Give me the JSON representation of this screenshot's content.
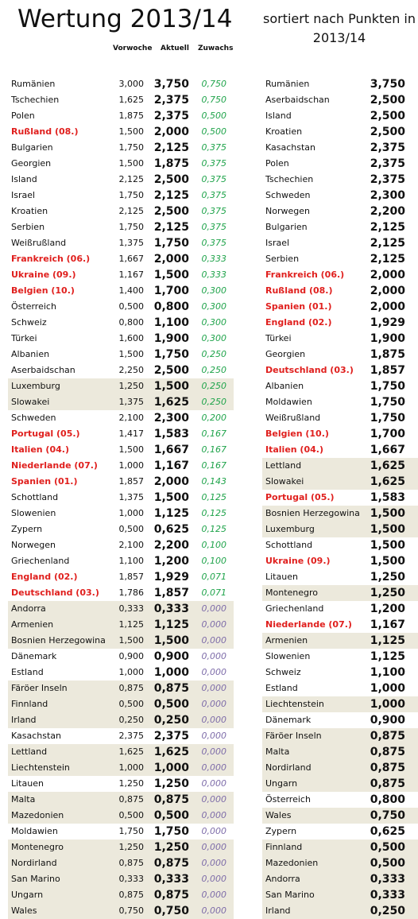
{
  "title": "Wertung 2013/14",
  "subtitle_line1": "sortiert nach Punkten in",
  "subtitle_line2": "2013/14",
  "headers": {
    "vorwoche": "Vorwoche",
    "aktuell": "Aktuell",
    "zuwachs": "Zuwachs"
  },
  "colors": {
    "highlight_text": "#e0201e",
    "zuwachs_positive": "#1ea34a",
    "zuwachs_zero": "#7c6aa8",
    "row_shade": "#ece9dc"
  },
  "left_rows": [
    {
      "name": "Rumänien",
      "vorwoche": "3,000",
      "aktuell": "3,750",
      "zuwachs": "0,750",
      "red": false,
      "shade": false
    },
    {
      "name": "Tschechien",
      "vorwoche": "1,625",
      "aktuell": "2,375",
      "zuwachs": "0,750",
      "red": false,
      "shade": false
    },
    {
      "name": "Polen",
      "vorwoche": "1,875",
      "aktuell": "2,375",
      "zuwachs": "0,500",
      "red": false,
      "shade": false
    },
    {
      "name": "Rußland (08.)",
      "vorwoche": "1,500",
      "aktuell": "2,000",
      "zuwachs": "0,500",
      "red": true,
      "shade": false
    },
    {
      "name": "Bulgarien",
      "vorwoche": "1,750",
      "aktuell": "2,125",
      "zuwachs": "0,375",
      "red": false,
      "shade": false
    },
    {
      "name": "Georgien",
      "vorwoche": "1,500",
      "aktuell": "1,875",
      "zuwachs": "0,375",
      "red": false,
      "shade": false
    },
    {
      "name": "Island",
      "vorwoche": "2,125",
      "aktuell": "2,500",
      "zuwachs": "0,375",
      "red": false,
      "shade": false
    },
    {
      "name": "Israel",
      "vorwoche": "1,750",
      "aktuell": "2,125",
      "zuwachs": "0,375",
      "red": false,
      "shade": false
    },
    {
      "name": "Kroatien",
      "vorwoche": "2,125",
      "aktuell": "2,500",
      "zuwachs": "0,375",
      "red": false,
      "shade": false
    },
    {
      "name": "Serbien",
      "vorwoche": "1,750",
      "aktuell": "2,125",
      "zuwachs": "0,375",
      "red": false,
      "shade": false
    },
    {
      "name": "Weißrußland",
      "vorwoche": "1,375",
      "aktuell": "1,750",
      "zuwachs": "0,375",
      "red": false,
      "shade": false
    },
    {
      "name": "Frankreich (06.)",
      "vorwoche": "1,667",
      "aktuell": "2,000",
      "zuwachs": "0,333",
      "red": true,
      "shade": false
    },
    {
      "name": "Ukraine (09.)",
      "vorwoche": "1,167",
      "aktuell": "1,500",
      "zuwachs": "0,333",
      "red": true,
      "shade": false
    },
    {
      "name": "Belgien (10.)",
      "vorwoche": "1,400",
      "aktuell": "1,700",
      "zuwachs": "0,300",
      "red": true,
      "shade": false
    },
    {
      "name": "Österreich",
      "vorwoche": "0,500",
      "aktuell": "0,800",
      "zuwachs": "0,300",
      "red": false,
      "shade": false
    },
    {
      "name": "Schweiz",
      "vorwoche": "0,800",
      "aktuell": "1,100",
      "zuwachs": "0,300",
      "red": false,
      "shade": false
    },
    {
      "name": "Türkei",
      "vorwoche": "1,600",
      "aktuell": "1,900",
      "zuwachs": "0,300",
      "red": false,
      "shade": false
    },
    {
      "name": "Albanien",
      "vorwoche": "1,500",
      "aktuell": "1,750",
      "zuwachs": "0,250",
      "red": false,
      "shade": false
    },
    {
      "name": "Aserbaidschan",
      "vorwoche": "2,250",
      "aktuell": "2,500",
      "zuwachs": "0,250",
      "red": false,
      "shade": false
    },
    {
      "name": "Luxemburg",
      "vorwoche": "1,250",
      "aktuell": "1,500",
      "zuwachs": "0,250",
      "red": false,
      "shade": true
    },
    {
      "name": "Slowakei",
      "vorwoche": "1,375",
      "aktuell": "1,625",
      "zuwachs": "0,250",
      "red": false,
      "shade": true
    },
    {
      "name": "Schweden",
      "vorwoche": "2,100",
      "aktuell": "2,300",
      "zuwachs": "0,200",
      "red": false,
      "shade": false
    },
    {
      "name": "Portugal (05.)",
      "vorwoche": "1,417",
      "aktuell": "1,583",
      "zuwachs": "0,167",
      "red": true,
      "shade": false
    },
    {
      "name": "Italien (04.)",
      "vorwoche": "1,500",
      "aktuell": "1,667",
      "zuwachs": "0,167",
      "red": true,
      "shade": false
    },
    {
      "name": "Niederlande (07.)",
      "vorwoche": "1,000",
      "aktuell": "1,167",
      "zuwachs": "0,167",
      "red": true,
      "shade": false
    },
    {
      "name": "Spanien (01.)",
      "vorwoche": "1,857",
      "aktuell": "2,000",
      "zuwachs": "0,143",
      "red": true,
      "shade": false
    },
    {
      "name": "Schottland",
      "vorwoche": "1,375",
      "aktuell": "1,500",
      "zuwachs": "0,125",
      "red": false,
      "shade": false
    },
    {
      "name": "Slowenien",
      "vorwoche": "1,000",
      "aktuell": "1,125",
      "zuwachs": "0,125",
      "red": false,
      "shade": false
    },
    {
      "name": "Zypern",
      "vorwoche": "0,500",
      "aktuell": "0,625",
      "zuwachs": "0,125",
      "red": false,
      "shade": false
    },
    {
      "name": "Norwegen",
      "vorwoche": "2,100",
      "aktuell": "2,200",
      "zuwachs": "0,100",
      "red": false,
      "shade": false
    },
    {
      "name": "Griechenland",
      "vorwoche": "1,100",
      "aktuell": "1,200",
      "zuwachs": "0,100",
      "red": false,
      "shade": false
    },
    {
      "name": "England (02.)",
      "vorwoche": "1,857",
      "aktuell": "1,929",
      "zuwachs": "0,071",
      "red": true,
      "shade": false
    },
    {
      "name": "Deutschland (03.)",
      "vorwoche": "1,786",
      "aktuell": "1,857",
      "zuwachs": "0,071",
      "red": true,
      "shade": false
    },
    {
      "name": "Andorra",
      "vorwoche": "0,333",
      "aktuell": "0,333",
      "zuwachs": "0,000",
      "red": false,
      "shade": true
    },
    {
      "name": "Armenien",
      "vorwoche": "1,125",
      "aktuell": "1,125",
      "zuwachs": "0,000",
      "red": false,
      "shade": true
    },
    {
      "name": "Bosnien Herzegowina",
      "vorwoche": "1,500",
      "aktuell": "1,500",
      "zuwachs": "0,000",
      "red": false,
      "shade": true
    },
    {
      "name": "Dänemark",
      "vorwoche": "0,900",
      "aktuell": "0,900",
      "zuwachs": "0,000",
      "red": false,
      "shade": false
    },
    {
      "name": "Estland",
      "vorwoche": "1,000",
      "aktuell": "1,000",
      "zuwachs": "0,000",
      "red": false,
      "shade": false
    },
    {
      "name": "Färöer Inseln",
      "vorwoche": "0,875",
      "aktuell": "0,875",
      "zuwachs": "0,000",
      "red": false,
      "shade": true
    },
    {
      "name": "Finnland",
      "vorwoche": "0,500",
      "aktuell": "0,500",
      "zuwachs": "0,000",
      "red": false,
      "shade": true
    },
    {
      "name": "Irland",
      "vorwoche": "0,250",
      "aktuell": "0,250",
      "zuwachs": "0,000",
      "red": false,
      "shade": true
    },
    {
      "name": "Kasachstan",
      "vorwoche": "2,375",
      "aktuell": "2,375",
      "zuwachs": "0,000",
      "red": false,
      "shade": false
    },
    {
      "name": "Lettland",
      "vorwoche": "1,625",
      "aktuell": "1,625",
      "zuwachs": "0,000",
      "red": false,
      "shade": true
    },
    {
      "name": "Liechtenstein",
      "vorwoche": "1,000",
      "aktuell": "1,000",
      "zuwachs": "0,000",
      "red": false,
      "shade": true
    },
    {
      "name": "Litauen",
      "vorwoche": "1,250",
      "aktuell": "1,250",
      "zuwachs": "0,000",
      "red": false,
      "shade": false
    },
    {
      "name": "Malta",
      "vorwoche": "0,875",
      "aktuell": "0,875",
      "zuwachs": "0,000",
      "red": false,
      "shade": true
    },
    {
      "name": "Mazedonien",
      "vorwoche": "0,500",
      "aktuell": "0,500",
      "zuwachs": "0,000",
      "red": false,
      "shade": true
    },
    {
      "name": "Moldawien",
      "vorwoche": "1,750",
      "aktuell": "1,750",
      "zuwachs": "0,000",
      "red": false,
      "shade": false
    },
    {
      "name": "Montenegro",
      "vorwoche": "1,250",
      "aktuell": "1,250",
      "zuwachs": "0,000",
      "red": false,
      "shade": true
    },
    {
      "name": "Nordirland",
      "vorwoche": "0,875",
      "aktuell": "0,875",
      "zuwachs": "0,000",
      "red": false,
      "shade": true
    },
    {
      "name": "San Marino",
      "vorwoche": "0,333",
      "aktuell": "0,333",
      "zuwachs": "0,000",
      "red": false,
      "shade": true
    },
    {
      "name": "Ungarn",
      "vorwoche": "0,875",
      "aktuell": "0,875",
      "zuwachs": "0,000",
      "red": false,
      "shade": true
    },
    {
      "name": "Wales",
      "vorwoche": "0,750",
      "aktuell": "0,750",
      "zuwachs": "0,000",
      "red": false,
      "shade": true
    }
  ],
  "right_rows": [
    {
      "name": "Rumänien",
      "aktuell": "3,750",
      "red": false,
      "shade": false
    },
    {
      "name": "Aserbaidschan",
      "aktuell": "2,500",
      "red": false,
      "shade": false
    },
    {
      "name": "Island",
      "aktuell": "2,500",
      "red": false,
      "shade": false
    },
    {
      "name": "Kroatien",
      "aktuell": "2,500",
      "red": false,
      "shade": false
    },
    {
      "name": "Kasachstan",
      "aktuell": "2,375",
      "red": false,
      "shade": false
    },
    {
      "name": "Polen",
      "aktuell": "2,375",
      "red": false,
      "shade": false
    },
    {
      "name": "Tschechien",
      "aktuell": "2,375",
      "red": false,
      "shade": false
    },
    {
      "name": "Schweden",
      "aktuell": "2,300",
      "red": false,
      "shade": false
    },
    {
      "name": "Norwegen",
      "aktuell": "2,200",
      "red": false,
      "shade": false
    },
    {
      "name": "Bulgarien",
      "aktuell": "2,125",
      "red": false,
      "shade": false
    },
    {
      "name": "Israel",
      "aktuell": "2,125",
      "red": false,
      "shade": false
    },
    {
      "name": "Serbien",
      "aktuell": "2,125",
      "red": false,
      "shade": false
    },
    {
      "name": "Frankreich (06.)",
      "aktuell": "2,000",
      "red": true,
      "shade": false
    },
    {
      "name": "Rußland (08.)",
      "aktuell": "2,000",
      "red": true,
      "shade": false
    },
    {
      "name": "Spanien (01.)",
      "aktuell": "2,000",
      "red": true,
      "shade": false
    },
    {
      "name": "England (02.)",
      "aktuell": "1,929",
      "red": true,
      "shade": false
    },
    {
      "name": "Türkei",
      "aktuell": "1,900",
      "red": false,
      "shade": false
    },
    {
      "name": "Georgien",
      "aktuell": "1,875",
      "red": false,
      "shade": false
    },
    {
      "name": "Deutschland (03.)",
      "aktuell": "1,857",
      "red": true,
      "shade": false
    },
    {
      "name": "Albanien",
      "aktuell": "1,750",
      "red": false,
      "shade": false
    },
    {
      "name": "Moldawien",
      "aktuell": "1,750",
      "red": false,
      "shade": false
    },
    {
      "name": "Weißrußland",
      "aktuell": "1,750",
      "red": false,
      "shade": false
    },
    {
      "name": "Belgien (10.)",
      "aktuell": "1,700",
      "red": true,
      "shade": false
    },
    {
      "name": "Italien (04.)",
      "aktuell": "1,667",
      "red": true,
      "shade": false
    },
    {
      "name": "Lettland",
      "aktuell": "1,625",
      "red": false,
      "shade": true
    },
    {
      "name": "Slowakei",
      "aktuell": "1,625",
      "red": false,
      "shade": true
    },
    {
      "name": "Portugal (05.)",
      "aktuell": "1,583",
      "red": true,
      "shade": false
    },
    {
      "name": "Bosnien Herzegowina",
      "aktuell": "1,500",
      "red": false,
      "shade": true
    },
    {
      "name": "Luxemburg",
      "aktuell": "1,500",
      "red": false,
      "shade": true
    },
    {
      "name": "Schottland",
      "aktuell": "1,500",
      "red": false,
      "shade": false
    },
    {
      "name": "Ukraine (09.)",
      "aktuell": "1,500",
      "red": true,
      "shade": false
    },
    {
      "name": "Litauen",
      "aktuell": "1,250",
      "red": false,
      "shade": false
    },
    {
      "name": "Montenegro",
      "aktuell": "1,250",
      "red": false,
      "shade": true
    },
    {
      "name": "Griechenland",
      "aktuell": "1,200",
      "red": false,
      "shade": false
    },
    {
      "name": "Niederlande (07.)",
      "aktuell": "1,167",
      "red": true,
      "shade": false
    },
    {
      "name": "Armenien",
      "aktuell": "1,125",
      "red": false,
      "shade": true
    },
    {
      "name": "Slowenien",
      "aktuell": "1,125",
      "red": false,
      "shade": false
    },
    {
      "name": "Schweiz",
      "aktuell": "1,100",
      "red": false,
      "shade": false
    },
    {
      "name": "Estland",
      "aktuell": "1,000",
      "red": false,
      "shade": false
    },
    {
      "name": "Liechtenstein",
      "aktuell": "1,000",
      "red": false,
      "shade": true
    },
    {
      "name": "Dänemark",
      "aktuell": "0,900",
      "red": false,
      "shade": false
    },
    {
      "name": "Färöer Inseln",
      "aktuell": "0,875",
      "red": false,
      "shade": true
    },
    {
      "name": "Malta",
      "aktuell": "0,875",
      "red": false,
      "shade": true
    },
    {
      "name": "Nordirland",
      "aktuell": "0,875",
      "red": false,
      "shade": true
    },
    {
      "name": "Ungarn",
      "aktuell": "0,875",
      "red": false,
      "shade": true
    },
    {
      "name": "Österreich",
      "aktuell": "0,800",
      "red": false,
      "shade": false
    },
    {
      "name": "Wales",
      "aktuell": "0,750",
      "red": false,
      "shade": true
    },
    {
      "name": "Zypern",
      "aktuell": "0,625",
      "red": false,
      "shade": false
    },
    {
      "name": "Finnland",
      "aktuell": "0,500",
      "red": false,
      "shade": true
    },
    {
      "name": "Mazedonien",
      "aktuell": "0,500",
      "red": false,
      "shade": true
    },
    {
      "name": "Andorra",
      "aktuell": "0,333",
      "red": false,
      "shade": true
    },
    {
      "name": "San Marino",
      "aktuell": "0,333",
      "red": false,
      "shade": true
    },
    {
      "name": "Irland",
      "aktuell": "0,250",
      "red": false,
      "shade": true
    }
  ]
}
